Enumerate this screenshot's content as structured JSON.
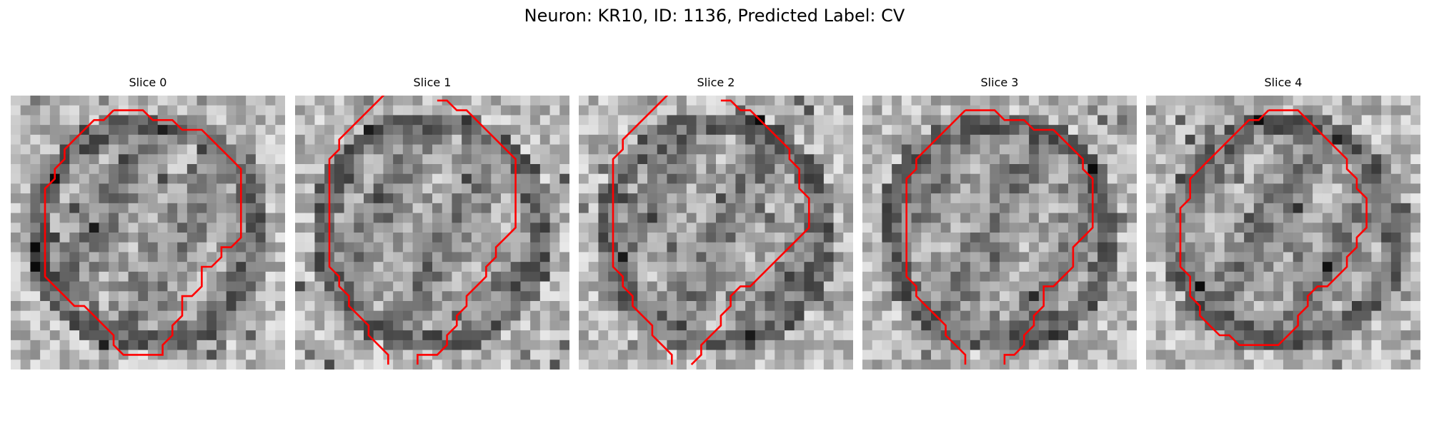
{
  "figure": {
    "title": "Neuron: KR10, ID: 1136, Predicted Label: CV"
  },
  "contour_color": "#ff0000",
  "panels": [
    {
      "title": "Slice 0",
      "contour": [
        [
          7,
          1
        ],
        [
          10,
          1
        ],
        [
          11,
          2
        ],
        [
          13,
          2
        ],
        [
          14,
          3
        ],
        [
          16,
          3
        ],
        [
          17,
          4
        ],
        [
          18,
          5
        ],
        [
          19,
          6
        ],
        [
          20,
          7
        ],
        [
          20,
          8
        ],
        [
          20,
          9
        ],
        [
          20,
          10
        ],
        [
          20,
          11
        ],
        [
          20,
          12
        ],
        [
          20,
          13
        ],
        [
          20,
          14
        ],
        [
          19,
          15
        ],
        [
          18,
          15
        ],
        [
          18,
          16
        ],
        [
          17,
          17
        ],
        [
          16,
          17
        ],
        [
          16,
          18
        ],
        [
          16,
          19
        ],
        [
          15,
          20
        ],
        [
          14,
          20
        ],
        [
          14,
          21
        ],
        [
          14,
          22
        ],
        [
          13,
          23
        ],
        [
          13,
          24
        ],
        [
          12,
          25
        ],
        [
          12,
          26
        ],
        [
          10,
          26
        ],
        [
          8,
          26
        ],
        [
          7,
          25
        ],
        [
          7,
          24
        ],
        [
          6,
          23
        ],
        [
          5,
          22
        ],
        [
          4,
          21
        ],
        [
          3,
          21
        ],
        [
          2,
          20
        ],
        [
          1,
          19
        ],
        [
          0,
          18
        ],
        [
          0,
          17
        ],
        [
          0,
          16
        ],
        [
          0,
          15
        ],
        [
          0,
          14
        ],
        [
          0,
          13
        ],
        [
          0,
          12
        ],
        [
          0,
          11
        ],
        [
          0,
          10
        ],
        [
          0,
          9
        ],
        [
          1,
          8
        ],
        [
          1,
          7
        ],
        [
          2,
          6
        ],
        [
          2,
          5
        ],
        [
          3,
          4
        ],
        [
          4,
          3
        ],
        [
          5,
          2
        ],
        [
          6,
          2
        ],
        [
          7,
          1
        ]
      ]
    },
    {
      "title": "Slice 1",
      "contour": [
        [
          11,
          0
        ],
        [
          12,
          0
        ],
        [
          13,
          1
        ],
        [
          14,
          1
        ],
        [
          15,
          2
        ],
        [
          16,
          3
        ],
        [
          17,
          4
        ],
        [
          18,
          5
        ],
        [
          19,
          6
        ],
        [
          19,
          7
        ],
        [
          19,
          8
        ],
        [
          19,
          9
        ],
        [
          19,
          10
        ],
        [
          19,
          11
        ],
        [
          19,
          12
        ],
        [
          19,
          13
        ],
        [
          18,
          14
        ],
        [
          17,
          15
        ],
        [
          17,
          16
        ],
        [
          16,
          17
        ],
        [
          16,
          18
        ],
        [
          15,
          19
        ],
        [
          14,
          20
        ],
        [
          14,
          21
        ],
        [
          13,
          22
        ],
        [
          13,
          23
        ],
        [
          12,
          24
        ],
        [
          12,
          25
        ],
        [
          11,
          26
        ],
        [
          10,
          26
        ],
        [
          9,
          26
        ],
        [
          9,
          27
        ]
      ],
      "contour2": [
        [
          6,
          -1
        ],
        [
          5,
          0
        ],
        [
          4,
          1
        ],
        [
          3,
          2
        ],
        [
          2,
          3
        ],
        [
          1,
          4
        ],
        [
          1,
          5
        ],
        [
          0,
          6
        ],
        [
          0,
          7
        ],
        [
          0,
          8
        ],
        [
          0,
          9
        ],
        [
          0,
          10
        ],
        [
          0,
          11
        ],
        [
          0,
          12
        ],
        [
          0,
          13
        ],
        [
          0,
          14
        ],
        [
          0,
          15
        ],
        [
          0,
          16
        ],
        [
          0,
          17
        ],
        [
          1,
          18
        ],
        [
          1,
          19
        ],
        [
          2,
          20
        ],
        [
          2,
          21
        ],
        [
          3,
          22
        ],
        [
          4,
          23
        ],
        [
          4,
          24
        ],
        [
          5,
          25
        ],
        [
          6,
          26
        ],
        [
          6,
          27
        ]
      ]
    },
    {
      "title": "Slice 2",
      "contour": [
        [
          11,
          0
        ],
        [
          12,
          0
        ],
        [
          13,
          1
        ],
        [
          14,
          1
        ],
        [
          15,
          2
        ],
        [
          16,
          3
        ],
        [
          17,
          4
        ],
        [
          18,
          5
        ],
        [
          18,
          6
        ],
        [
          19,
          7
        ],
        [
          19,
          8
        ],
        [
          19,
          9
        ],
        [
          20,
          10
        ],
        [
          20,
          11
        ],
        [
          20,
          12
        ],
        [
          20,
          13
        ],
        [
          19,
          14
        ],
        [
          18,
          15
        ],
        [
          17,
          16
        ],
        [
          16,
          17
        ],
        [
          15,
          18
        ],
        [
          14,
          19
        ],
        [
          13,
          19
        ],
        [
          12,
          20
        ],
        [
          12,
          21
        ],
        [
          11,
          22
        ],
        [
          11,
          23
        ],
        [
          10,
          24
        ],
        [
          9,
          25
        ],
        [
          9,
          26
        ],
        [
          8,
          27
        ]
      ],
      "contour2": [
        [
          6,
          -1
        ],
        [
          5,
          0
        ],
        [
          4,
          1
        ],
        [
          3,
          2
        ],
        [
          2,
          3
        ],
        [
          1,
          4
        ],
        [
          1,
          5
        ],
        [
          0,
          6
        ],
        [
          0,
          7
        ],
        [
          0,
          8
        ],
        [
          0,
          9
        ],
        [
          0,
          10
        ],
        [
          0,
          11
        ],
        [
          0,
          12
        ],
        [
          0,
          13
        ],
        [
          0,
          14
        ],
        [
          0,
          15
        ],
        [
          0,
          16
        ],
        [
          0,
          17
        ],
        [
          1,
          18
        ],
        [
          1,
          19
        ],
        [
          2,
          20
        ],
        [
          2,
          21
        ],
        [
          3,
          22
        ],
        [
          4,
          23
        ],
        [
          4,
          24
        ],
        [
          5,
          25
        ],
        [
          6,
          26
        ],
        [
          6,
          27
        ]
      ]
    },
    {
      "title": "Slice 3",
      "contour": [
        [
          7,
          1
        ],
        [
          10,
          1
        ],
        [
          11,
          2
        ],
        [
          13,
          2
        ],
        [
          14,
          3
        ],
        [
          16,
          3
        ],
        [
          17,
          4
        ],
        [
          18,
          5
        ],
        [
          19,
          6
        ],
        [
          19,
          7
        ],
        [
          20,
          8
        ],
        [
          20,
          9
        ],
        [
          20,
          10
        ],
        [
          20,
          11
        ],
        [
          20,
          12
        ],
        [
          20,
          13
        ],
        [
          19,
          14
        ],
        [
          18,
          15
        ],
        [
          18,
          16
        ],
        [
          18,
          17
        ],
        [
          17,
          18
        ],
        [
          16,
          19
        ],
        [
          15,
          19
        ],
        [
          15,
          20
        ],
        [
          15,
          21
        ],
        [
          14,
          22
        ],
        [
          14,
          23
        ],
        [
          13,
          24
        ],
        [
          13,
          25
        ],
        [
          12,
          26
        ],
        [
          11,
          26
        ],
        [
          11,
          27
        ]
      ],
      "contour2": [
        [
          7,
          1
        ],
        [
          6,
          2
        ],
        [
          5,
          3
        ],
        [
          4,
          4
        ],
        [
          3,
          5
        ],
        [
          2,
          6
        ],
        [
          2,
          7
        ],
        [
          1,
          8
        ],
        [
          1,
          9
        ],
        [
          1,
          10
        ],
        [
          1,
          11
        ],
        [
          1,
          12
        ],
        [
          1,
          13
        ],
        [
          1,
          14
        ],
        [
          1,
          15
        ],
        [
          1,
          16
        ],
        [
          1,
          17
        ],
        [
          1,
          18
        ],
        [
          2,
          19
        ],
        [
          2,
          20
        ],
        [
          3,
          21
        ],
        [
          4,
          22
        ],
        [
          5,
          23
        ],
        [
          5,
          24
        ],
        [
          6,
          25
        ],
        [
          7,
          26
        ],
        [
          7,
          27
        ]
      ]
    },
    {
      "title": "Slice 4",
      "contour": [
        [
          9,
          1
        ],
        [
          12,
          1
        ],
        [
          13,
          2
        ],
        [
          14,
          3
        ],
        [
          15,
          4
        ],
        [
          16,
          5
        ],
        [
          17,
          6
        ],
        [
          17,
          7
        ],
        [
          18,
          8
        ],
        [
          18,
          9
        ],
        [
          19,
          10
        ],
        [
          19,
          11
        ],
        [
          19,
          12
        ],
        [
          19,
          13
        ],
        [
          18,
          14
        ],
        [
          18,
          15
        ],
        [
          17,
          16
        ],
        [
          17,
          17
        ],
        [
          16,
          18
        ],
        [
          15,
          19
        ],
        [
          14,
          19
        ],
        [
          13,
          20
        ],
        [
          13,
          21
        ],
        [
          12,
          22
        ],
        [
          12,
          23
        ],
        [
          11,
          24
        ],
        [
          10,
          25
        ],
        [
          9,
          25
        ],
        [
          8,
          25
        ],
        [
          7,
          25
        ],
        [
          6,
          25
        ],
        [
          5,
          24
        ],
        [
          4,
          24
        ],
        [
          3,
          23
        ],
        [
          2,
          22
        ],
        [
          2,
          21
        ],
        [
          1,
          20
        ],
        [
          1,
          19
        ],
        [
          1,
          18
        ],
        [
          0,
          17
        ],
        [
          0,
          16
        ],
        [
          0,
          15
        ],
        [
          0,
          14
        ],
        [
          0,
          13
        ],
        [
          0,
          12
        ],
        [
          0,
          11
        ],
        [
          1,
          10
        ],
        [
          1,
          9
        ],
        [
          1,
          8
        ],
        [
          2,
          7
        ],
        [
          3,
          6
        ],
        [
          4,
          5
        ],
        [
          5,
          4
        ],
        [
          6,
          3
        ],
        [
          7,
          2
        ],
        [
          8,
          2
        ],
        [
          9,
          1
        ]
      ]
    }
  ]
}
